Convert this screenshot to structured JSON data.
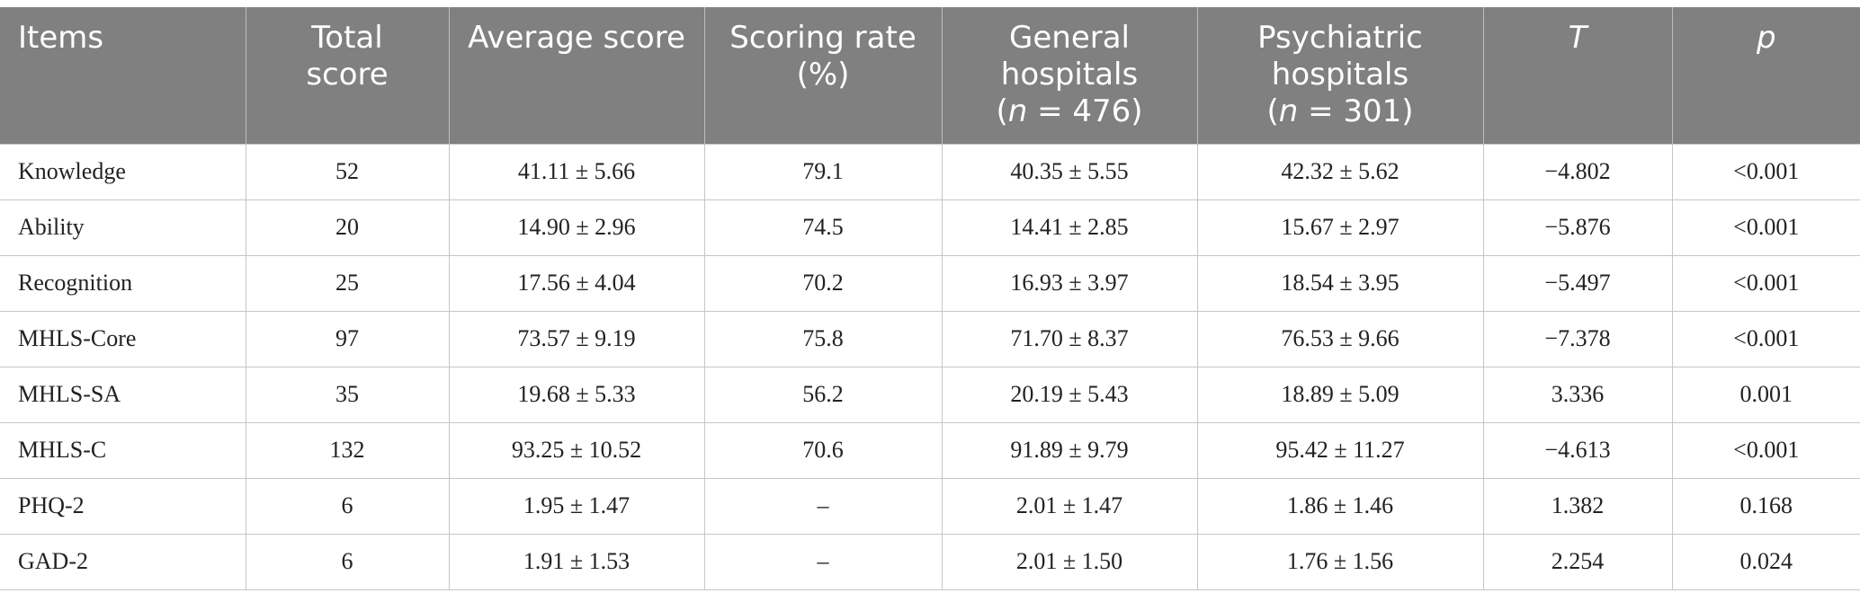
{
  "table": {
    "headers": [
      {
        "key": "items",
        "lines": [
          "Items"
        ]
      },
      {
        "key": "total_score",
        "lines": [
          "Total",
          "score"
        ]
      },
      {
        "key": "average_score",
        "lines": [
          "Average score"
        ]
      },
      {
        "key": "scoring_rate",
        "lines": [
          "Scoring rate",
          "(%)"
        ]
      },
      {
        "key": "general_hospitals",
        "lines": [
          "General",
          "hospitals"
        ],
        "n_prefix": "(",
        "n_var": "n",
        "n_rest": " = 476)"
      },
      {
        "key": "psychiatric_hospitals",
        "lines": [
          "Psychiatric",
          "hospitals"
        ],
        "n_prefix": "(",
        "n_var": "n",
        "n_rest": " = 301)"
      },
      {
        "key": "t",
        "lines": [
          "T"
        ],
        "italic": true
      },
      {
        "key": "p",
        "lines": [
          "p"
        ],
        "italic": true
      }
    ],
    "rows": [
      [
        "Knowledge",
        "52",
        "41.11 ± 5.66",
        "79.1",
        "40.35 ± 5.55",
        "42.32 ± 5.62",
        "−4.802",
        "<0.001"
      ],
      [
        "Ability",
        "20",
        "14.90 ± 2.96",
        "74.5",
        "14.41 ± 2.85",
        "15.67 ± 2.97",
        "−5.876",
        "<0.001"
      ],
      [
        "Recognition",
        "25",
        "17.56 ± 4.04",
        "70.2",
        "16.93 ± 3.97",
        "18.54 ± 3.95",
        "−5.497",
        "<0.001"
      ],
      [
        "MHLS-Core",
        "97",
        "73.57 ± 9.19",
        "75.8",
        "71.70 ± 8.37",
        "76.53 ± 9.66",
        "−7.378",
        "<0.001"
      ],
      [
        "MHLS-SA",
        "35",
        "19.68 ± 5.33",
        "56.2",
        "20.19 ± 5.43",
        "18.89 ± 5.09",
        "3.336",
        "0.001"
      ],
      [
        "MHLS-C",
        "132",
        "93.25 ± 10.52",
        "70.6",
        "91.89 ± 9.79",
        "95.42 ± 11.27",
        "−4.613",
        "<0.001"
      ],
      [
        "PHQ-2",
        "6",
        "1.95 ± 1.47",
        "–",
        "2.01 ± 1.47",
        "1.86 ± 1.46",
        "1.382",
        "0.168"
      ],
      [
        "GAD-2",
        "6",
        "1.91 ± 1.53",
        "–",
        "2.01 ± 1.50",
        "1.76 ± 1.56",
        "2.254",
        "0.024"
      ]
    ]
  },
  "colors": {
    "header_background": "#7f807f",
    "header_text": "#ffffff",
    "grid_line": "#c6c6c6"
  }
}
